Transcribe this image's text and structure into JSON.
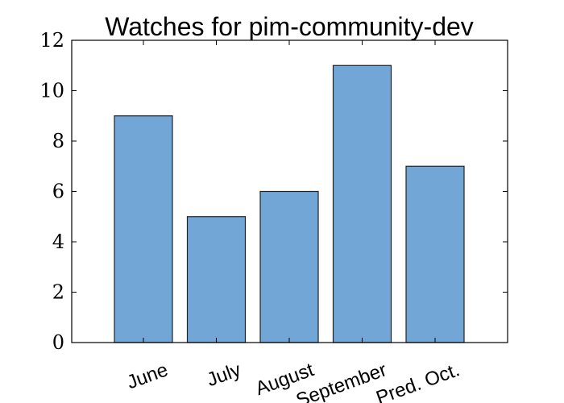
{
  "chart_data": {
    "type": "bar",
    "title": "Watches for pim-community-dev",
    "categories": [
      "June",
      "July",
      "August",
      "September",
      "Pred. Oct."
    ],
    "values": [
      9,
      5,
      6,
      11,
      7
    ],
    "xlabel": "",
    "ylabel": "",
    "ylim": [
      0,
      12
    ],
    "yticks": [
      "0",
      "2",
      "4",
      "6",
      "8",
      "10",
      "12"
    ],
    "bar_color": "#72a6d6",
    "bar_edge_color": "#222222",
    "grid": false,
    "legend": false
  }
}
